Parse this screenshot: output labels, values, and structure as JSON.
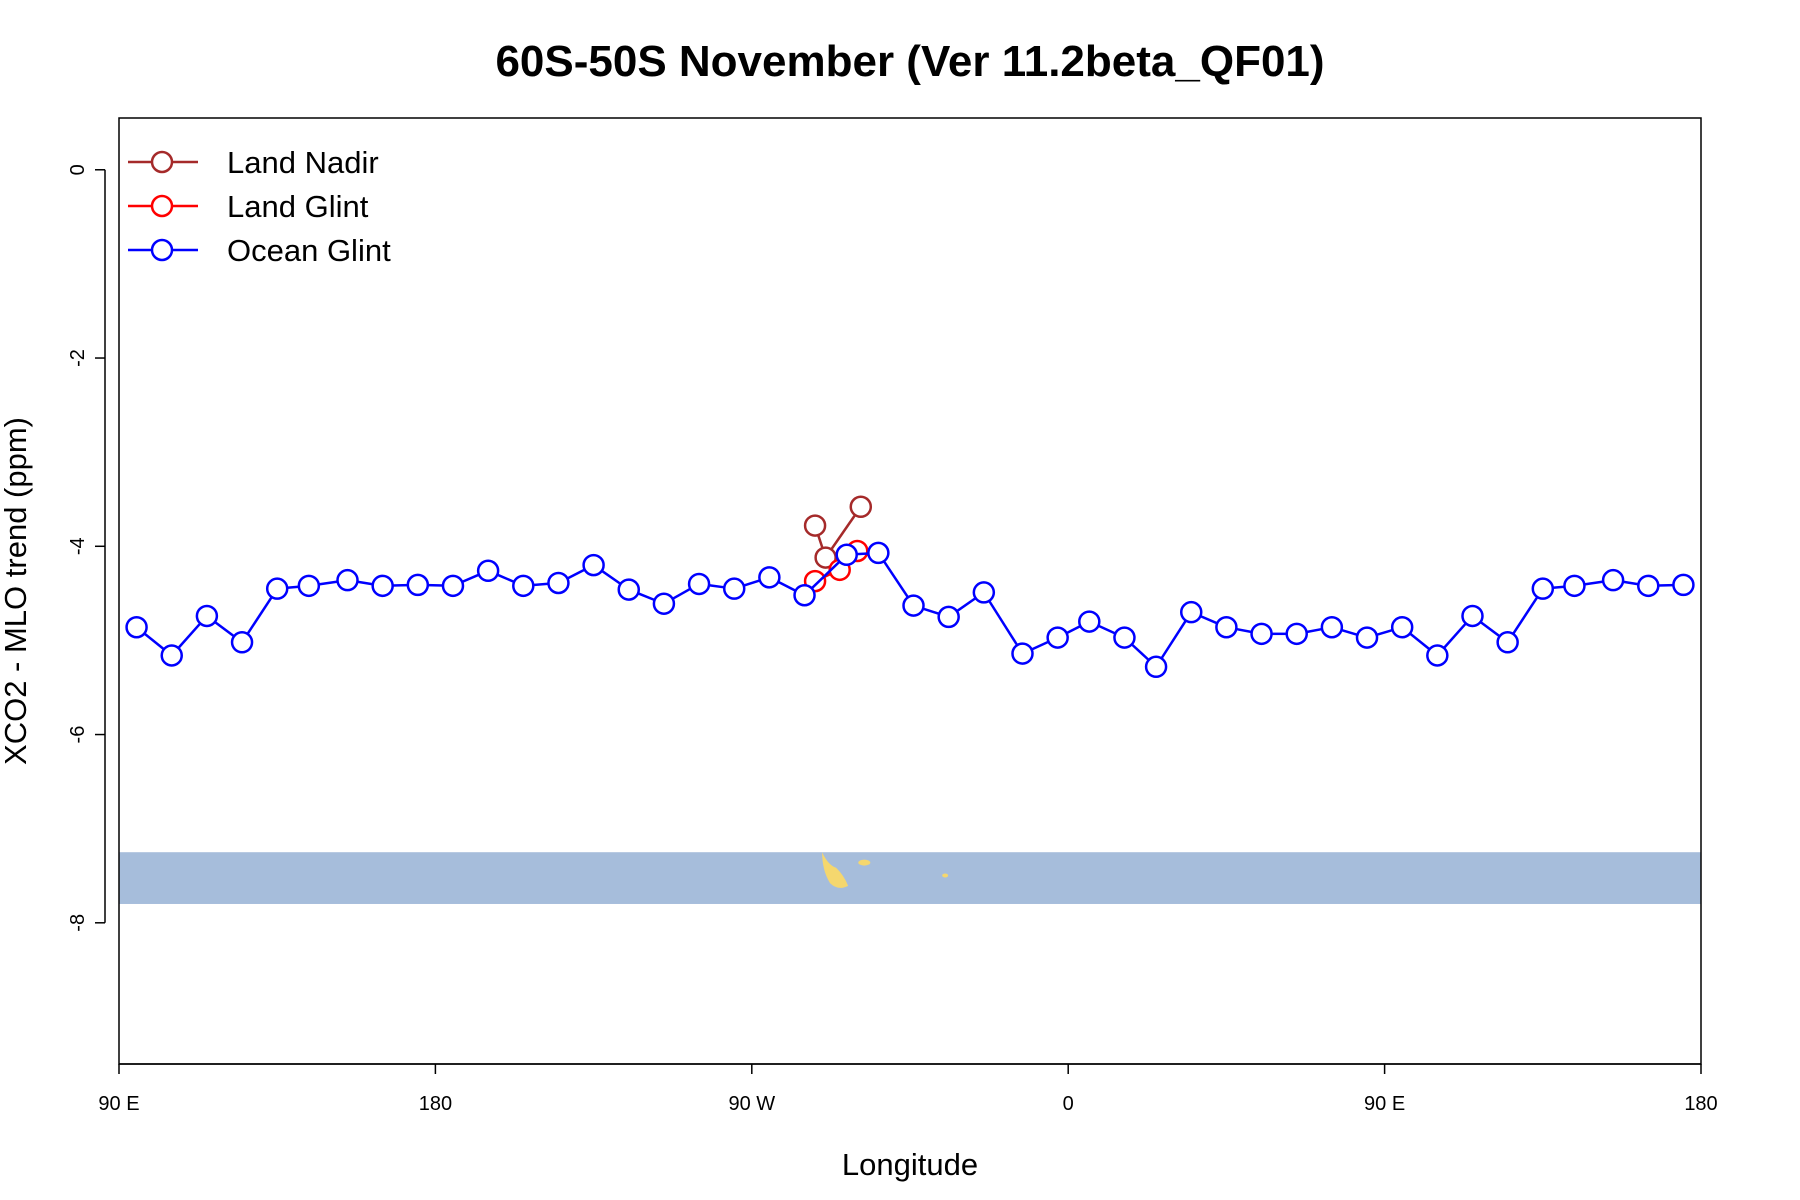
{
  "chart_data": {
    "type": "line",
    "title": "60S-50S November (Ver 11.2beta_QF01)",
    "xlabel": "Longitude",
    "ylabel": "XCO2 - MLO trend (ppm)",
    "x_axis": {
      "range": [
        90,
        540
      ],
      "ticks": [
        {
          "value": 90,
          "label": "90 E"
        },
        {
          "value": 180,
          "label": "180"
        },
        {
          "value": 270,
          "label": "90 W"
        },
        {
          "value": 360,
          "label": "0"
        },
        {
          "value": 450,
          "label": "90 E"
        },
        {
          "value": 540,
          "label": "180"
        }
      ]
    },
    "y_axis": {
      "range": [
        -9.5,
        0.55
      ],
      "ticks": [
        {
          "value": 0,
          "label": "0"
        },
        {
          "value": -2,
          "label": "-2"
        },
        {
          "value": -4,
          "label": "-4"
        },
        {
          "value": -6,
          "label": "-6"
        },
        {
          "value": -8,
          "label": "-8"
        }
      ]
    },
    "grid": false,
    "legend_position": "top-left",
    "map_strip": {
      "y_top": -7.25,
      "y_bottom": -7.8,
      "ocean_color": "#a6bddb",
      "land_color": "#f5d76e"
    },
    "series": [
      {
        "name": "Land Nadir",
        "color": "#a52a2a",
        "points": [
          [
            288,
            -3.78
          ],
          [
            291,
            -4.12
          ],
          [
            301,
            -3.58
          ]
        ]
      },
      {
        "name": "Land Glint",
        "color": "#ff0000",
        "points": [
          [
            288,
            -4.37
          ],
          [
            295,
            -4.25
          ],
          [
            300,
            -4.05
          ]
        ]
      },
      {
        "name": "Ocean Glint",
        "color": "#0000ff",
        "points": [
          [
            95,
            -4.86
          ],
          [
            105,
            -5.16
          ],
          [
            115,
            -4.74
          ],
          [
            125,
            -5.02
          ],
          [
            135,
            -4.45
          ],
          [
            144,
            -4.42
          ],
          [
            155,
            -4.36
          ],
          [
            165,
            -4.42
          ],
          [
            175,
            -4.41
          ],
          [
            185,
            -4.42
          ],
          [
            195,
            -4.26
          ],
          [
            205,
            -4.42
          ],
          [
            215,
            -4.39
          ],
          [
            225,
            -4.2
          ],
          [
            235,
            -4.46
          ],
          [
            245,
            -4.61
          ],
          [
            255,
            -4.4
          ],
          [
            265,
            -4.45
          ],
          [
            275,
            -4.33
          ],
          [
            285,
            -4.52
          ],
          [
            297,
            -4.09
          ],
          [
            306,
            -4.07
          ],
          [
            316,
            -4.63
          ],
          [
            326,
            -4.75
          ],
          [
            336,
            -4.49
          ],
          [
            347,
            -5.14
          ],
          [
            357,
            -4.97
          ],
          [
            366,
            -4.8
          ],
          [
            376,
            -4.97
          ],
          [
            385,
            -5.28
          ],
          [
            395,
            -4.7
          ],
          [
            405,
            -4.86
          ],
          [
            415,
            -4.93
          ],
          [
            425,
            -4.93
          ],
          [
            435,
            -4.86
          ],
          [
            445,
            -4.97
          ],
          [
            455,
            -4.86
          ],
          [
            465,
            -5.16
          ],
          [
            475,
            -4.74
          ],
          [
            485,
            -5.02
          ],
          [
            495,
            -4.45
          ],
          [
            504,
            -4.42
          ],
          [
            515,
            -4.36
          ],
          [
            525,
            -4.42
          ],
          [
            535,
            -4.41
          ]
        ]
      }
    ]
  }
}
